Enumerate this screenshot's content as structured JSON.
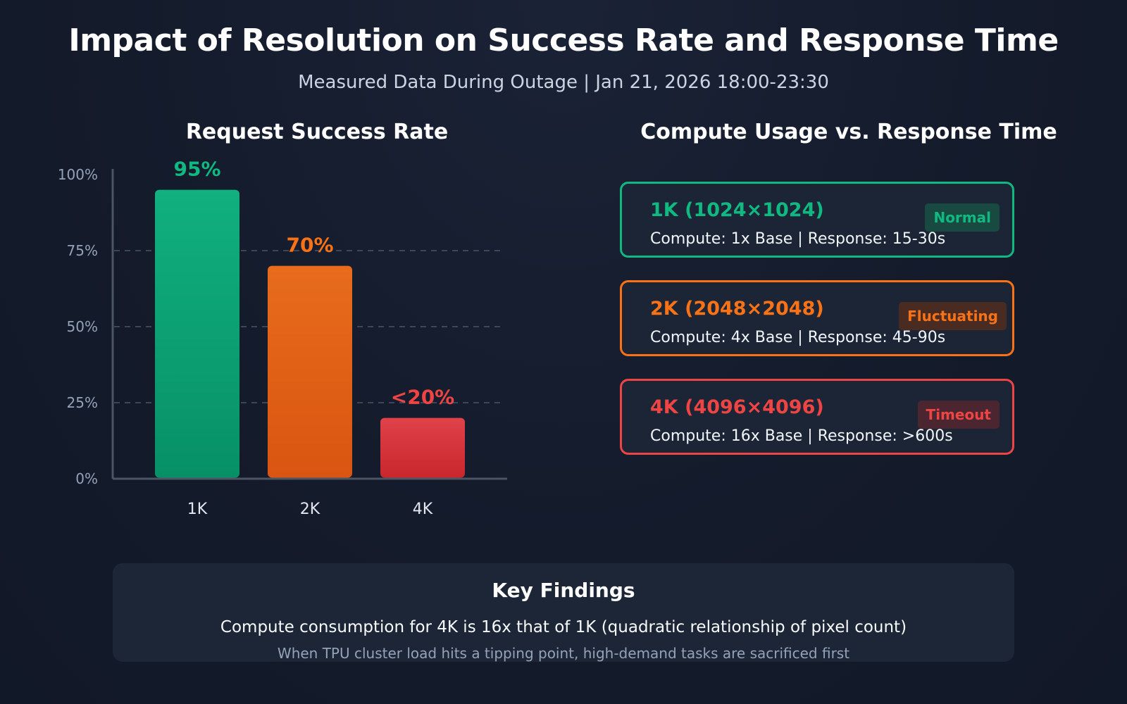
{
  "header": {
    "title": "Impact of Resolution on Success Rate and Response Time",
    "subtitle": "Measured Data During Outage | Jan 21, 2026 18:00-23:30"
  },
  "chart_data": {
    "type": "bar",
    "title": "Request Success Rate",
    "categories": [
      "1K",
      "2K",
      "4K"
    ],
    "values": [
      95,
      70,
      20
    ],
    "value_labels": [
      "95%",
      "70%",
      "<20%"
    ],
    "colors": [
      "#10b981",
      "#f97316",
      "#ef4444"
    ],
    "ylim": [
      0,
      100
    ],
    "yticks": [
      0,
      25,
      50,
      75,
      100
    ],
    "ytick_labels": [
      "0%",
      "25%",
      "50%",
      "75%",
      "100%"
    ],
    "gridlines": [
      25,
      50,
      75
    ],
    "xlabel": "",
    "ylabel": ""
  },
  "compute": {
    "title": "Compute Usage vs. Response Time",
    "cards": [
      {
        "title": "1K (1024×1024)",
        "detail": "Compute: 1x Base | Response: 15-30s",
        "badge": "Normal",
        "color": "#10b981"
      },
      {
        "title": "2K (2048×2048)",
        "detail": "Compute: 4x Base | Response: 45-90s",
        "badge": "Fluctuating",
        "color": "#f97316"
      },
      {
        "title": "4K (4096×4096)",
        "detail": "Compute: 16x Base | Response: >600s",
        "badge": "Timeout",
        "color": "#ef4444"
      }
    ]
  },
  "findings": {
    "title": "Key Findings",
    "main": "Compute consumption for 4K is 16x that of 1K (quadratic relationship of pixel count)",
    "note": "When TPU cluster load hits a tipping point, high-demand tasks are sacrificed first"
  }
}
